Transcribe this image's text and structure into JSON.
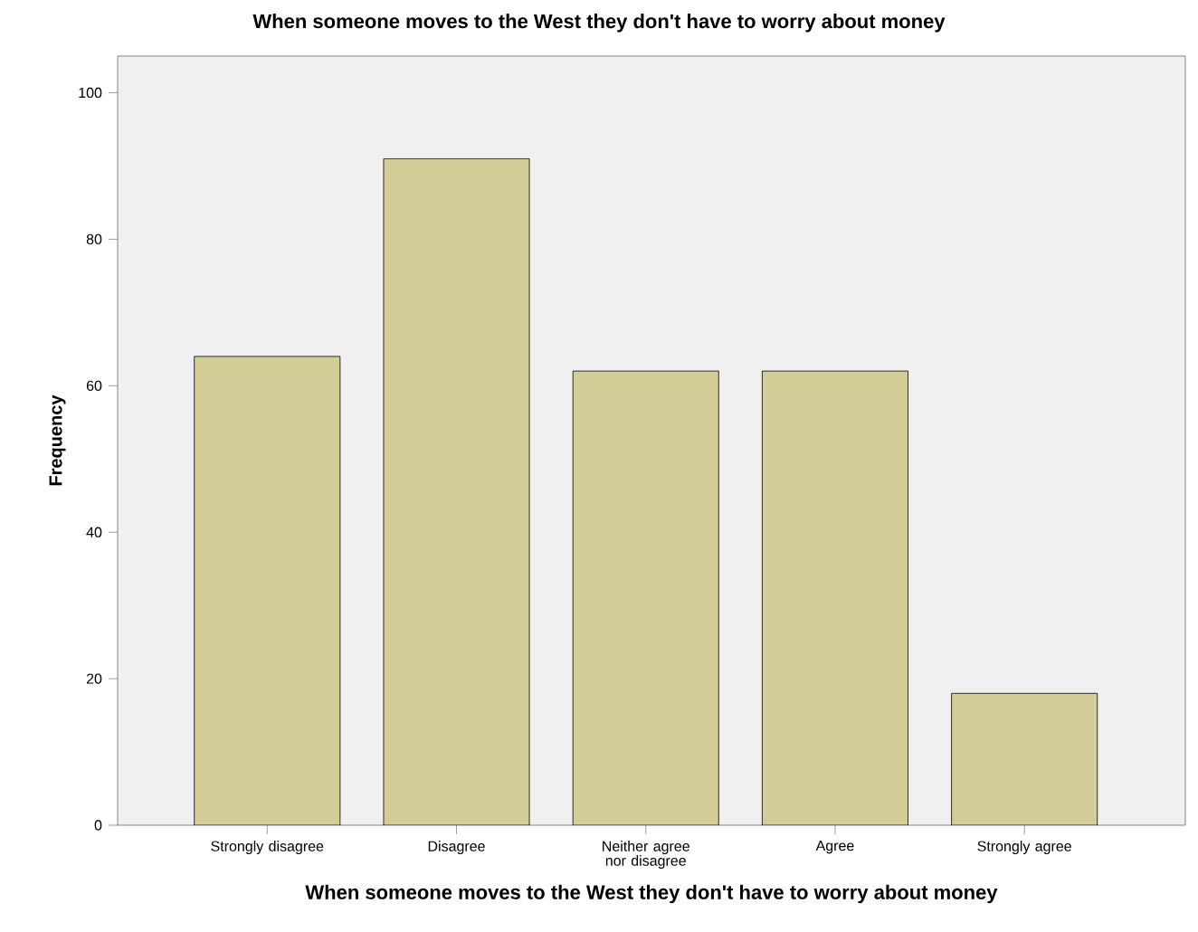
{
  "chart_data": {
    "type": "bar",
    "title": "When someone moves to the West they don't have to worry about money",
    "xlabel": "When someone moves to the West they don't have to worry about money",
    "ylabel": "Frequency",
    "categories": [
      "Strongly disagree",
      "Disagree",
      "Neither agree nor disagree",
      "Agree",
      "Strongly agree"
    ],
    "values": [
      64,
      91,
      62,
      62,
      18
    ],
    "color": "#d3ce97",
    "ylim": [
      0,
      105
    ],
    "yticks": [
      0,
      20,
      40,
      60,
      80,
      100
    ],
    "grid": false
  }
}
